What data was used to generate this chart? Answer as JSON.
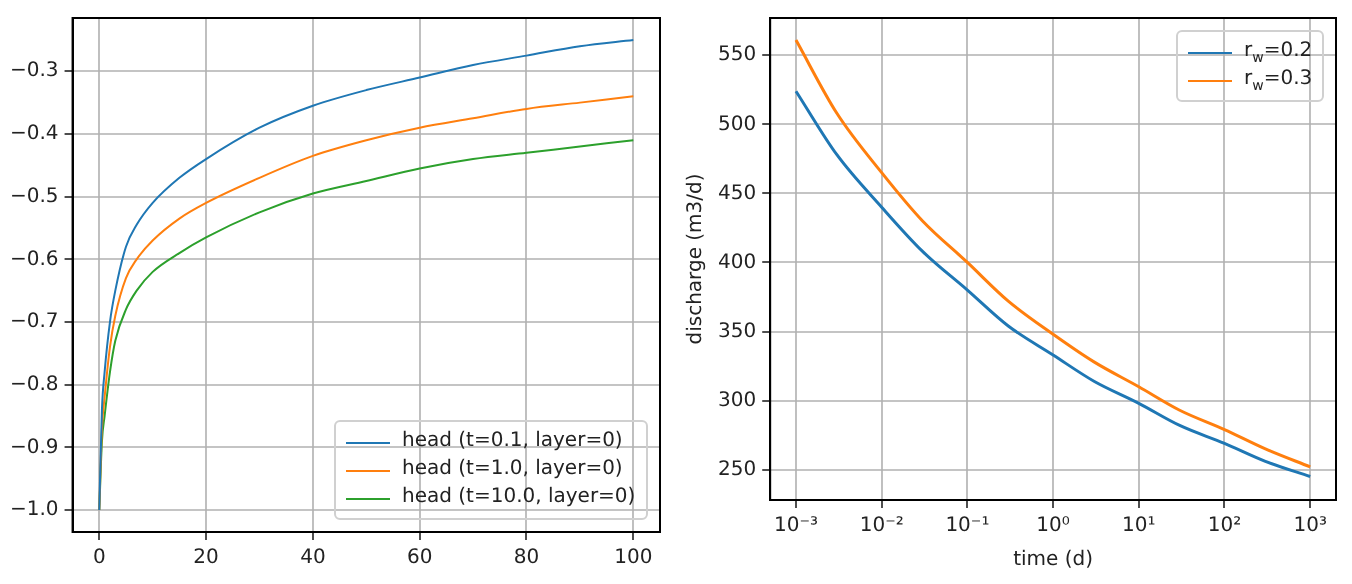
{
  "chart_data": [
    {
      "type": "line",
      "xlim": [
        -5,
        105
      ],
      "ylim": [
        -1.035,
        -0.215
      ],
      "xticks": [
        0,
        20,
        40,
        60,
        80,
        100
      ],
      "yticks": [
        {
          "value": -1.0,
          "label": "−1.0"
        },
        {
          "value": -0.9,
          "label": "−0.9"
        },
        {
          "value": -0.8,
          "label": "−0.8"
        },
        {
          "value": -0.7,
          "label": "−0.7"
        },
        {
          "value": -0.6,
          "label": "−0.6"
        },
        {
          "value": -0.5,
          "label": "−0.5"
        },
        {
          "value": -0.4,
          "label": "−0.4"
        },
        {
          "value": -0.3,
          "label": "−0.3"
        }
      ],
      "grid": true,
      "legend": "bottom right",
      "series": [
        {
          "name": "head (t=0.1, layer=0)",
          "color": "#1f77b4",
          "x": [
            0,
            0.5,
            1,
            2,
            3,
            5,
            7,
            10,
            15,
            20,
            30,
            40,
            50,
            60,
            70,
            80,
            90,
            100
          ],
          "values": [
            -1.0,
            -0.84,
            -0.78,
            -0.7,
            -0.65,
            -0.58,
            -0.545,
            -0.51,
            -0.47,
            -0.44,
            -0.39,
            -0.355,
            -0.33,
            -0.31,
            -0.29,
            -0.275,
            -0.26,
            -0.25
          ]
        },
        {
          "name": "head (t=1.0, layer=0)",
          "color": "#ff7f0e",
          "x": [
            0,
            0.5,
            1,
            2,
            3,
            5,
            7,
            10,
            15,
            20,
            30,
            40,
            50,
            60,
            70,
            80,
            90,
            100
          ],
          "values": [
            -1.0,
            -0.87,
            -0.82,
            -0.74,
            -0.69,
            -0.63,
            -0.6,
            -0.57,
            -0.535,
            -0.51,
            -0.47,
            -0.435,
            -0.41,
            -0.39,
            -0.375,
            -0.36,
            -0.35,
            -0.34
          ]
        },
        {
          "name": "head (t=10.0, layer=0)",
          "color": "#2ca02c",
          "x": [
            0,
            0.5,
            1,
            2,
            3,
            5,
            7,
            10,
            15,
            20,
            30,
            40,
            50,
            60,
            70,
            80,
            90,
            100
          ],
          "values": [
            -1.0,
            -0.89,
            -0.85,
            -0.78,
            -0.73,
            -0.68,
            -0.65,
            -0.62,
            -0.59,
            -0.565,
            -0.525,
            -0.495,
            -0.475,
            -0.455,
            -0.44,
            -0.43,
            -0.42,
            -0.41
          ]
        }
      ]
    },
    {
      "type": "line",
      "log": "x",
      "xlabel": "time (d)",
      "ylabel": "discharge (m3/d)",
      "xlim": [
        0.0005,
        2000
      ],
      "ylim": [
        228,
        577
      ],
      "xticks": [
        {
          "value": 0.001,
          "label": "10⁻³"
        },
        {
          "value": 0.01,
          "label": "10⁻²"
        },
        {
          "value": 0.1,
          "label": "10⁻¹"
        },
        {
          "value": 1,
          "label": "10⁰"
        },
        {
          "value": 10,
          "label": "10¹"
        },
        {
          "value": 100,
          "label": "10²"
        },
        {
          "value": 1000,
          "label": "10³"
        }
      ],
      "yticks": [
        250,
        300,
        350,
        400,
        450,
        500,
        550
      ],
      "grid": true,
      "legend": "top right",
      "series": [
        {
          "name": "r$_{w}$=0.2",
          "color": "#1f77b4",
          "x": [
            0.001,
            0.003,
            0.01,
            0.03,
            0.1,
            0.3,
            1,
            3,
            10,
            30,
            100,
            300,
            1000
          ],
          "values": [
            524,
            478,
            440,
            408,
            380,
            354,
            333,
            314,
            298,
            282,
            269,
            256,
            245
          ]
        },
        {
          "name": "r$_{w}$=0.3",
          "color": "#ff7f0e",
          "x": [
            0.001,
            0.003,
            0.01,
            0.03,
            0.1,
            0.3,
            1,
            3,
            10,
            30,
            100,
            300,
            1000
          ],
          "values": [
            561,
            508,
            465,
            430,
            400,
            372,
            348,
            328,
            310,
            293,
            279,
            265,
            252
          ]
        }
      ]
    }
  ]
}
